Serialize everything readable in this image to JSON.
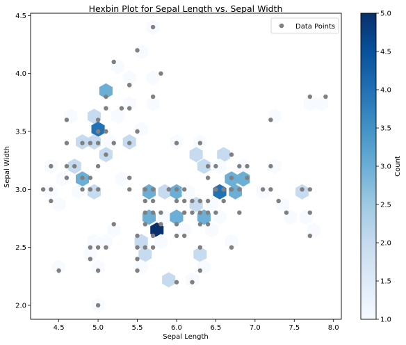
{
  "chart_data": {
    "type": "scatter",
    "title": "Hexbin Plot for Sepal Length vs. Sepal Width",
    "xlabel": "Sepal Length",
    "ylabel": "Sepal Width",
    "xlim": [
      4.14,
      8.1
    ],
    "ylim": [
      1.88,
      4.52
    ],
    "xticks": [
      4.5,
      5.0,
      5.5,
      6.0,
      6.5,
      7.0,
      7.5,
      8.0
    ],
    "xtick_labels": [
      "4.5",
      "5.0",
      "5.5",
      "6.0",
      "6.5",
      "7.0",
      "7.5",
      "8.0"
    ],
    "yticks": [
      2.0,
      2.5,
      3.0,
      3.5,
      4.0,
      4.5
    ],
    "ytick_labels": [
      "2.0",
      "2.5",
      "3.0",
      "3.5",
      "4.0",
      "4.5"
    ],
    "grid": false,
    "legend": {
      "location": "upper right",
      "entries": [
        "Data Points"
      ]
    },
    "colormap": "Blues",
    "colorbar": {
      "label": "Count",
      "range": [
        1.0,
        5.0
      ],
      "ticks": [
        1.0,
        1.5,
        2.0,
        2.5,
        3.0,
        3.5,
        4.0,
        4.5,
        5.0
      ],
      "tick_labels": [
        "1.0",
        "1.5",
        "2.0",
        "2.5",
        "3.0",
        "3.5",
        "4.0",
        "4.5",
        "5.0"
      ]
    },
    "series": [
      {
        "name": "Data Points",
        "color": "#808080",
        "points": [
          [
            5.7,
            4.4
          ],
          [
            5.5,
            4.2
          ],
          [
            5.8,
            4.0
          ],
          [
            5.2,
            4.1
          ],
          [
            5.4,
            3.9
          ],
          [
            5.4,
            3.9
          ],
          [
            5.1,
            3.8
          ],
          [
            5.7,
            3.8
          ],
          [
            7.7,
            3.8
          ],
          [
            7.9,
            3.8
          ],
          [
            5.1,
            3.7
          ],
          [
            5.3,
            3.7
          ],
          [
            5.4,
            3.7
          ],
          [
            4.6,
            3.6
          ],
          [
            5.0,
            3.6
          ],
          [
            7.2,
            3.6
          ],
          [
            5.0,
            3.5
          ],
          [
            5.1,
            3.5
          ],
          [
            5.5,
            3.5
          ],
          [
            4.9,
            3.4
          ],
          [
            4.6,
            3.4
          ],
          [
            4.8,
            3.4
          ],
          [
            5.0,
            3.4
          ],
          [
            5.2,
            3.4
          ],
          [
            5.4,
            3.4
          ],
          [
            6.0,
            3.4
          ],
          [
            6.3,
            3.4
          ],
          [
            5.1,
            3.3
          ],
          [
            6.7,
            3.3
          ],
          [
            4.4,
            3.2
          ],
          [
            4.6,
            3.2
          ],
          [
            4.7,
            3.2
          ],
          [
            5.0,
            3.2
          ],
          [
            6.4,
            3.2
          ],
          [
            6.9,
            3.2
          ],
          [
            7.2,
            3.2
          ],
          [
            6.5,
            3.2
          ],
          [
            6.8,
            3.2
          ],
          [
            4.8,
            3.1
          ],
          [
            4.9,
            3.1
          ],
          [
            4.6,
            3.1
          ],
          [
            5.4,
            3.1
          ],
          [
            6.7,
            3.1
          ],
          [
            6.9,
            3.1
          ],
          [
            6.4,
            3.1
          ],
          [
            4.4,
            3.0
          ],
          [
            4.3,
            3.0
          ],
          [
            4.8,
            3.0
          ],
          [
            4.9,
            3.0
          ],
          [
            5.0,
            3.0
          ],
          [
            5.6,
            3.0
          ],
          [
            5.9,
            3.0
          ],
          [
            6.0,
            3.0
          ],
          [
            6.1,
            3.0
          ],
          [
            6.5,
            3.0
          ],
          [
            6.6,
            3.0
          ],
          [
            6.7,
            3.0
          ],
          [
            6.8,
            3.0
          ],
          [
            7.1,
            3.0
          ],
          [
            7.2,
            3.0
          ],
          [
            7.6,
            3.0
          ],
          [
            7.7,
            3.0
          ],
          [
            5.4,
            3.0
          ],
          [
            5.7,
            3.0
          ],
          [
            4.4,
            2.9
          ],
          [
            5.6,
            2.9
          ],
          [
            5.7,
            2.9
          ],
          [
            6.0,
            2.9
          ],
          [
            6.1,
            2.9
          ],
          [
            6.2,
            2.9
          ],
          [
            6.3,
            2.9
          ],
          [
            6.4,
            2.9
          ],
          [
            6.6,
            2.9
          ],
          [
            7.3,
            2.9
          ],
          [
            5.6,
            2.8
          ],
          [
            5.7,
            2.8
          ],
          [
            5.8,
            2.8
          ],
          [
            6.1,
            2.8
          ],
          [
            6.2,
            2.8
          ],
          [
            6.3,
            2.8
          ],
          [
            6.4,
            2.8
          ],
          [
            6.5,
            2.8
          ],
          [
            6.8,
            2.8
          ],
          [
            7.4,
            2.8
          ],
          [
            7.7,
            2.8
          ],
          [
            5.2,
            2.7
          ],
          [
            5.6,
            2.7
          ],
          [
            5.8,
            2.7
          ],
          [
            6.0,
            2.7
          ],
          [
            6.3,
            2.7
          ],
          [
            6.4,
            2.7
          ],
          [
            6.0,
            2.6
          ],
          [
            5.5,
            2.6
          ],
          [
            5.7,
            2.6
          ],
          [
            6.1,
            2.6
          ],
          [
            7.7,
            2.6
          ],
          [
            4.9,
            2.5
          ],
          [
            5.1,
            2.5
          ],
          [
            5.5,
            2.5
          ],
          [
            5.6,
            2.5
          ],
          [
            5.7,
            2.5
          ],
          [
            6.3,
            2.5
          ],
          [
            6.7,
            2.5
          ],
          [
            5.0,
            2.5
          ],
          [
            4.9,
            2.4
          ],
          [
            5.5,
            2.4
          ],
          [
            4.5,
            2.3
          ],
          [
            5.0,
            2.3
          ],
          [
            5.5,
            2.3
          ],
          [
            6.3,
            2.3
          ],
          [
            6.0,
            2.2
          ],
          [
            6.2,
            2.2
          ],
          [
            5.0,
            2.0
          ]
        ]
      }
    ],
    "hexbins": [
      [
        5.7,
        4.4,
        1
      ],
      [
        5.55,
        4.19,
        1
      ],
      [
        5.25,
        4.06,
        1
      ],
      [
        5.7,
        3.96,
        1
      ],
      [
        5.4,
        3.96,
        1
      ],
      [
        5.1,
        3.85,
        3
      ],
      [
        5.4,
        3.74,
        1
      ],
      [
        5.7,
        3.74,
        1
      ],
      [
        7.7,
        3.74,
        1
      ],
      [
        7.85,
        3.74,
        1
      ],
      [
        4.65,
        3.63,
        1
      ],
      [
        4.95,
        3.63,
        2
      ],
      [
        5.25,
        3.63,
        1
      ],
      [
        7.25,
        3.63,
        1
      ],
      [
        5.0,
        3.52,
        4
      ],
      [
        5.55,
        3.52,
        1
      ],
      [
        4.8,
        3.41,
        2
      ],
      [
        4.95,
        3.41,
        2
      ],
      [
        5.15,
        3.41,
        1
      ],
      [
        5.4,
        3.41,
        2
      ],
      [
        6.0,
        3.41,
        1
      ],
      [
        6.3,
        3.41,
        1
      ],
      [
        5.1,
        3.3,
        2
      ],
      [
        6.25,
        3.3,
        2
      ],
      [
        6.6,
        3.3,
        2
      ],
      [
        4.4,
        3.2,
        1
      ],
      [
        4.7,
        3.2,
        2
      ],
      [
        6.35,
        3.2,
        2
      ],
      [
        6.55,
        3.2,
        1
      ],
      [
        6.85,
        3.2,
        1
      ],
      [
        7.25,
        3.2,
        1
      ],
      [
        4.8,
        3.09,
        3
      ],
      [
        6.7,
        3.09,
        3
      ],
      [
        6.85,
        3.09,
        3
      ],
      [
        4.55,
        3.09,
        1
      ],
      [
        5.3,
        3.09,
        1
      ],
      [
        4.4,
        2.98,
        1
      ],
      [
        4.75,
        2.98,
        1
      ],
      [
        4.95,
        2.98,
        2
      ],
      [
        5.65,
        2.98,
        3
      ],
      [
        5.85,
        2.98,
        2
      ],
      [
        6.0,
        2.98,
        3
      ],
      [
        6.15,
        2.98,
        1
      ],
      [
        6.55,
        2.98,
        4
      ],
      [
        6.75,
        2.98,
        3
      ],
      [
        7.1,
        2.98,
        1
      ],
      [
        7.6,
        2.98,
        2
      ],
      [
        4.5,
        2.87,
        1
      ],
      [
        6.25,
        2.87,
        2
      ],
      [
        6.45,
        2.87,
        1
      ],
      [
        7.35,
        2.87,
        1
      ],
      [
        5.65,
        2.76,
        3
      ],
      [
        5.85,
        2.76,
        1
      ],
      [
        6.0,
        2.76,
        3
      ],
      [
        6.35,
        2.76,
        3
      ],
      [
        6.55,
        2.76,
        1
      ],
      [
        7.45,
        2.76,
        1
      ],
      [
        7.65,
        2.76,
        1
      ],
      [
        5.75,
        2.65,
        5
      ],
      [
        5.2,
        2.65,
        1
      ],
      [
        6.1,
        2.65,
        1
      ],
      [
        6.45,
        2.65,
        1
      ],
      [
        7.75,
        2.65,
        1
      ],
      [
        5.55,
        2.55,
        2
      ],
      [
        4.95,
        2.55,
        1
      ],
      [
        5.1,
        2.55,
        1
      ],
      [
        5.8,
        2.55,
        1
      ],
      [
        6.7,
        2.55,
        1
      ],
      [
        5.6,
        2.44,
        2
      ],
      [
        4.9,
        2.44,
        1
      ],
      [
        6.3,
        2.44,
        2
      ],
      [
        5.55,
        2.33,
        1
      ],
      [
        4.5,
        2.33,
        1
      ],
      [
        5.0,
        2.33,
        1
      ],
      [
        6.35,
        2.33,
        1
      ],
      [
        5.9,
        2.22,
        2
      ],
      [
        6.2,
        2.22,
        1
      ],
      [
        5.0,
        2.0,
        1
      ]
    ]
  }
}
